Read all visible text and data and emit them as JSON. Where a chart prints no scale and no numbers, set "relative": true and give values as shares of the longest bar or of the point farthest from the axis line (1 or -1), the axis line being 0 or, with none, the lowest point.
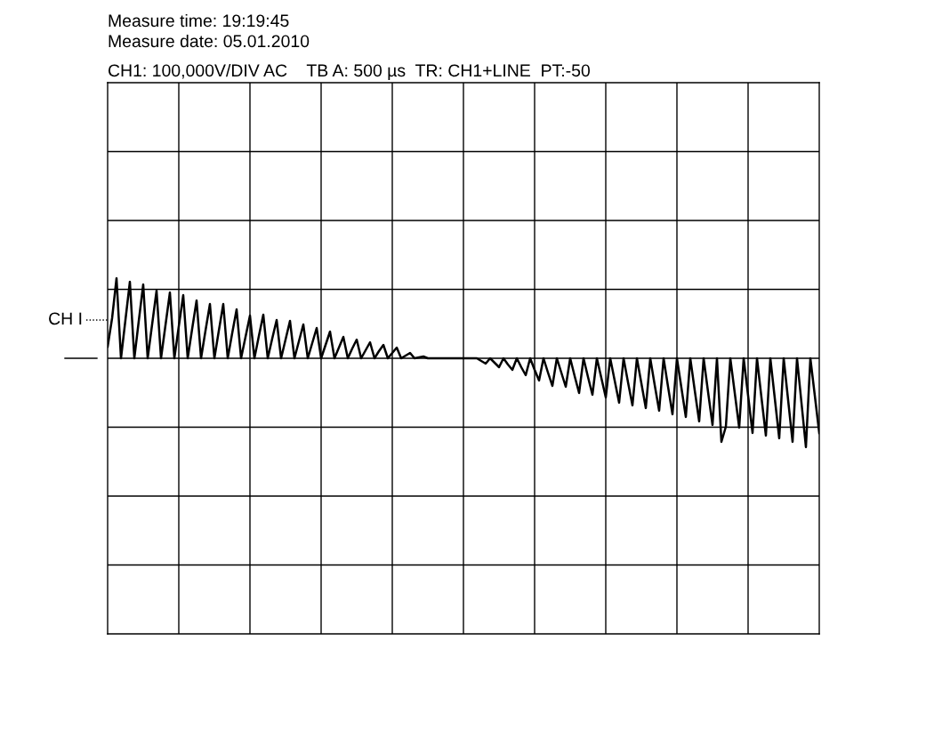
{
  "chart_data": {
    "type": "line",
    "relative": true,
    "title": "Measure time: 19:19:45",
    "subtitle": "Measure date: 05.01.2010",
    "annotations": [
      "CH1: 100,000V/DIV AC    TB A: 500 µs  TR: CH1+LINE  PT:-50"
    ],
    "categories": [
      null,
      null,
      null,
      null,
      null,
      null,
      null,
      null,
      null,
      null,
      null,
      null,
      null,
      null,
      null,
      null,
      null,
      null,
      null,
      null,
      null,
      null,
      null,
      null,
      null,
      null,
      null,
      null,
      null,
      null,
      null,
      null,
      null,
      null,
      null,
      null,
      null,
      null,
      null,
      null,
      null,
      null,
      null,
      null,
      null,
      null,
      null,
      null,
      null,
      null,
      null,
      null,
      null,
      null,
      null,
      null,
      null,
      null,
      null,
      null,
      null,
      null,
      null,
      null,
      null,
      null,
      null,
      null,
      null,
      null,
      null,
      null,
      null,
      null,
      null,
      null,
      null,
      null,
      null,
      null,
      null,
      null,
      null,
      null,
      null,
      null,
      null,
      null,
      null,
      null,
      null,
      null,
      null,
      null,
      null,
      null,
      null,
      null,
      null,
      null,
      null,
      null,
      null,
      null,
      null,
      null,
      null,
      null,
      null,
      null,
      null,
      null,
      null,
      null,
      null,
      null,
      null,
      null,
      null,
      null,
      null,
      null,
      null,
      null,
      null,
      null,
      null,
      null,
      null,
      null,
      null,
      null,
      null,
      null,
      null,
      null,
      null,
      null,
      null,
      null,
      null,
      null,
      null,
      null,
      null,
      null,
      null,
      null,
      null,
      null,
      null,
      null,
      null,
      null,
      null,
      null,
      null,
      null,
      null,
      null,
      null
    ],
    "grid": true,
    "marker": "none",
    "line_style": "solid",
    "ref_lines": [
      {
        "axis": "y",
        "value": 0.43,
        "label": "CH I",
        "line_style": "dotted",
        "color": "#000000"
      }
    ],
    "series": [
      {
        "color": "#000000",
        "values": [
          0.13,
          0.45,
          0.9,
          0,
          0.43,
          0.86,
          0,
          0.42,
          0.83,
          0,
          0.38,
          0.76,
          0,
          0.37,
          0.74,
          0,
          0.36,
          0.71,
          0,
          0.33,
          0.65,
          0,
          0.31,
          0.61,
          0,
          0.31,
          0.61,
          0,
          0.28,
          0.55,
          0,
          0.24,
          0.48,
          0,
          0.25,
          0.49,
          0,
          0.22,
          0.43,
          0,
          0.21,
          0.42,
          0,
          0.19,
          0.38,
          0,
          0.17,
          0.34,
          0,
          0.15,
          0.3,
          0,
          0.12,
          0.24,
          0,
          0.11,
          0.21,
          0,
          0.09,
          0.18,
          0,
          0.08,
          0.15,
          0,
          0.06,
          0.12,
          0,
          0.03,
          0.06,
          0,
          0.01,
          0.02,
          0,
          0,
          0,
          0,
          0,
          0,
          0,
          0,
          0,
          0,
          0,
          0,
          -0.03,
          -0.06,
          0,
          -0.05,
          -0.1,
          0,
          -0.07,
          -0.13,
          0,
          -0.1,
          -0.19,
          0,
          -0.13,
          -0.25,
          0,
          -0.16,
          -0.31,
          0,
          -0.16,
          -0.32,
          0,
          -0.2,
          -0.39,
          0,
          -0.21,
          -0.41,
          0,
          -0.22,
          -0.44,
          0,
          -0.25,
          -0.5,
          0,
          -0.27,
          -0.53,
          0,
          -0.28,
          -0.56,
          0,
          -0.3,
          -0.59,
          0,
          -0.32,
          -0.63,
          0,
          -0.33,
          -0.66,
          0,
          -0.36,
          -0.71,
          0,
          -0.38,
          -0.75,
          0,
          -0.94,
          -0.77,
          0,
          -0.39,
          -0.78,
          0,
          -0.42,
          -0.84,
          0,
          -0.44,
          -0.87,
          0,
          -0.45,
          -0.9,
          0,
          -0.47,
          -0.94,
          0,
          -0.5,
          -1.0,
          0,
          -0.42,
          -0.84
        ]
      }
    ]
  }
}
